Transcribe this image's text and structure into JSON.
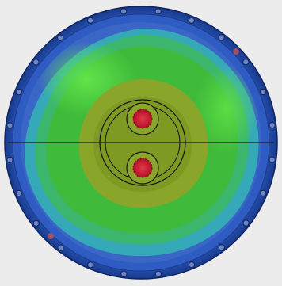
{
  "viewport": {
    "background": "#ececec"
  },
  "contour_plot": {
    "type": "stress-contour",
    "colors": {
      "flange_outer": "#1d3f96",
      "flange_inner": "#2c56b8",
      "bolt": "#6f86c4",
      "bolt_rim": "#0f2460",
      "band_blue_edge": "#3a66c6",
      "band_teal": "#36a9b8",
      "band_green_teal": "#3cb66c",
      "band_green": "#3fba3a",
      "band_bright_green": "#5dde3a",
      "band_yellow_green": "#8aa62a",
      "band_olive": "#7f9a22",
      "hot_spot": "#c8102e",
      "hot_spot_core": "#e63946",
      "outline": "#1a1a1a"
    },
    "features": {
      "bolt_count_flange": 24,
      "center_ports": 2,
      "split_line": "horizontal"
    }
  }
}
